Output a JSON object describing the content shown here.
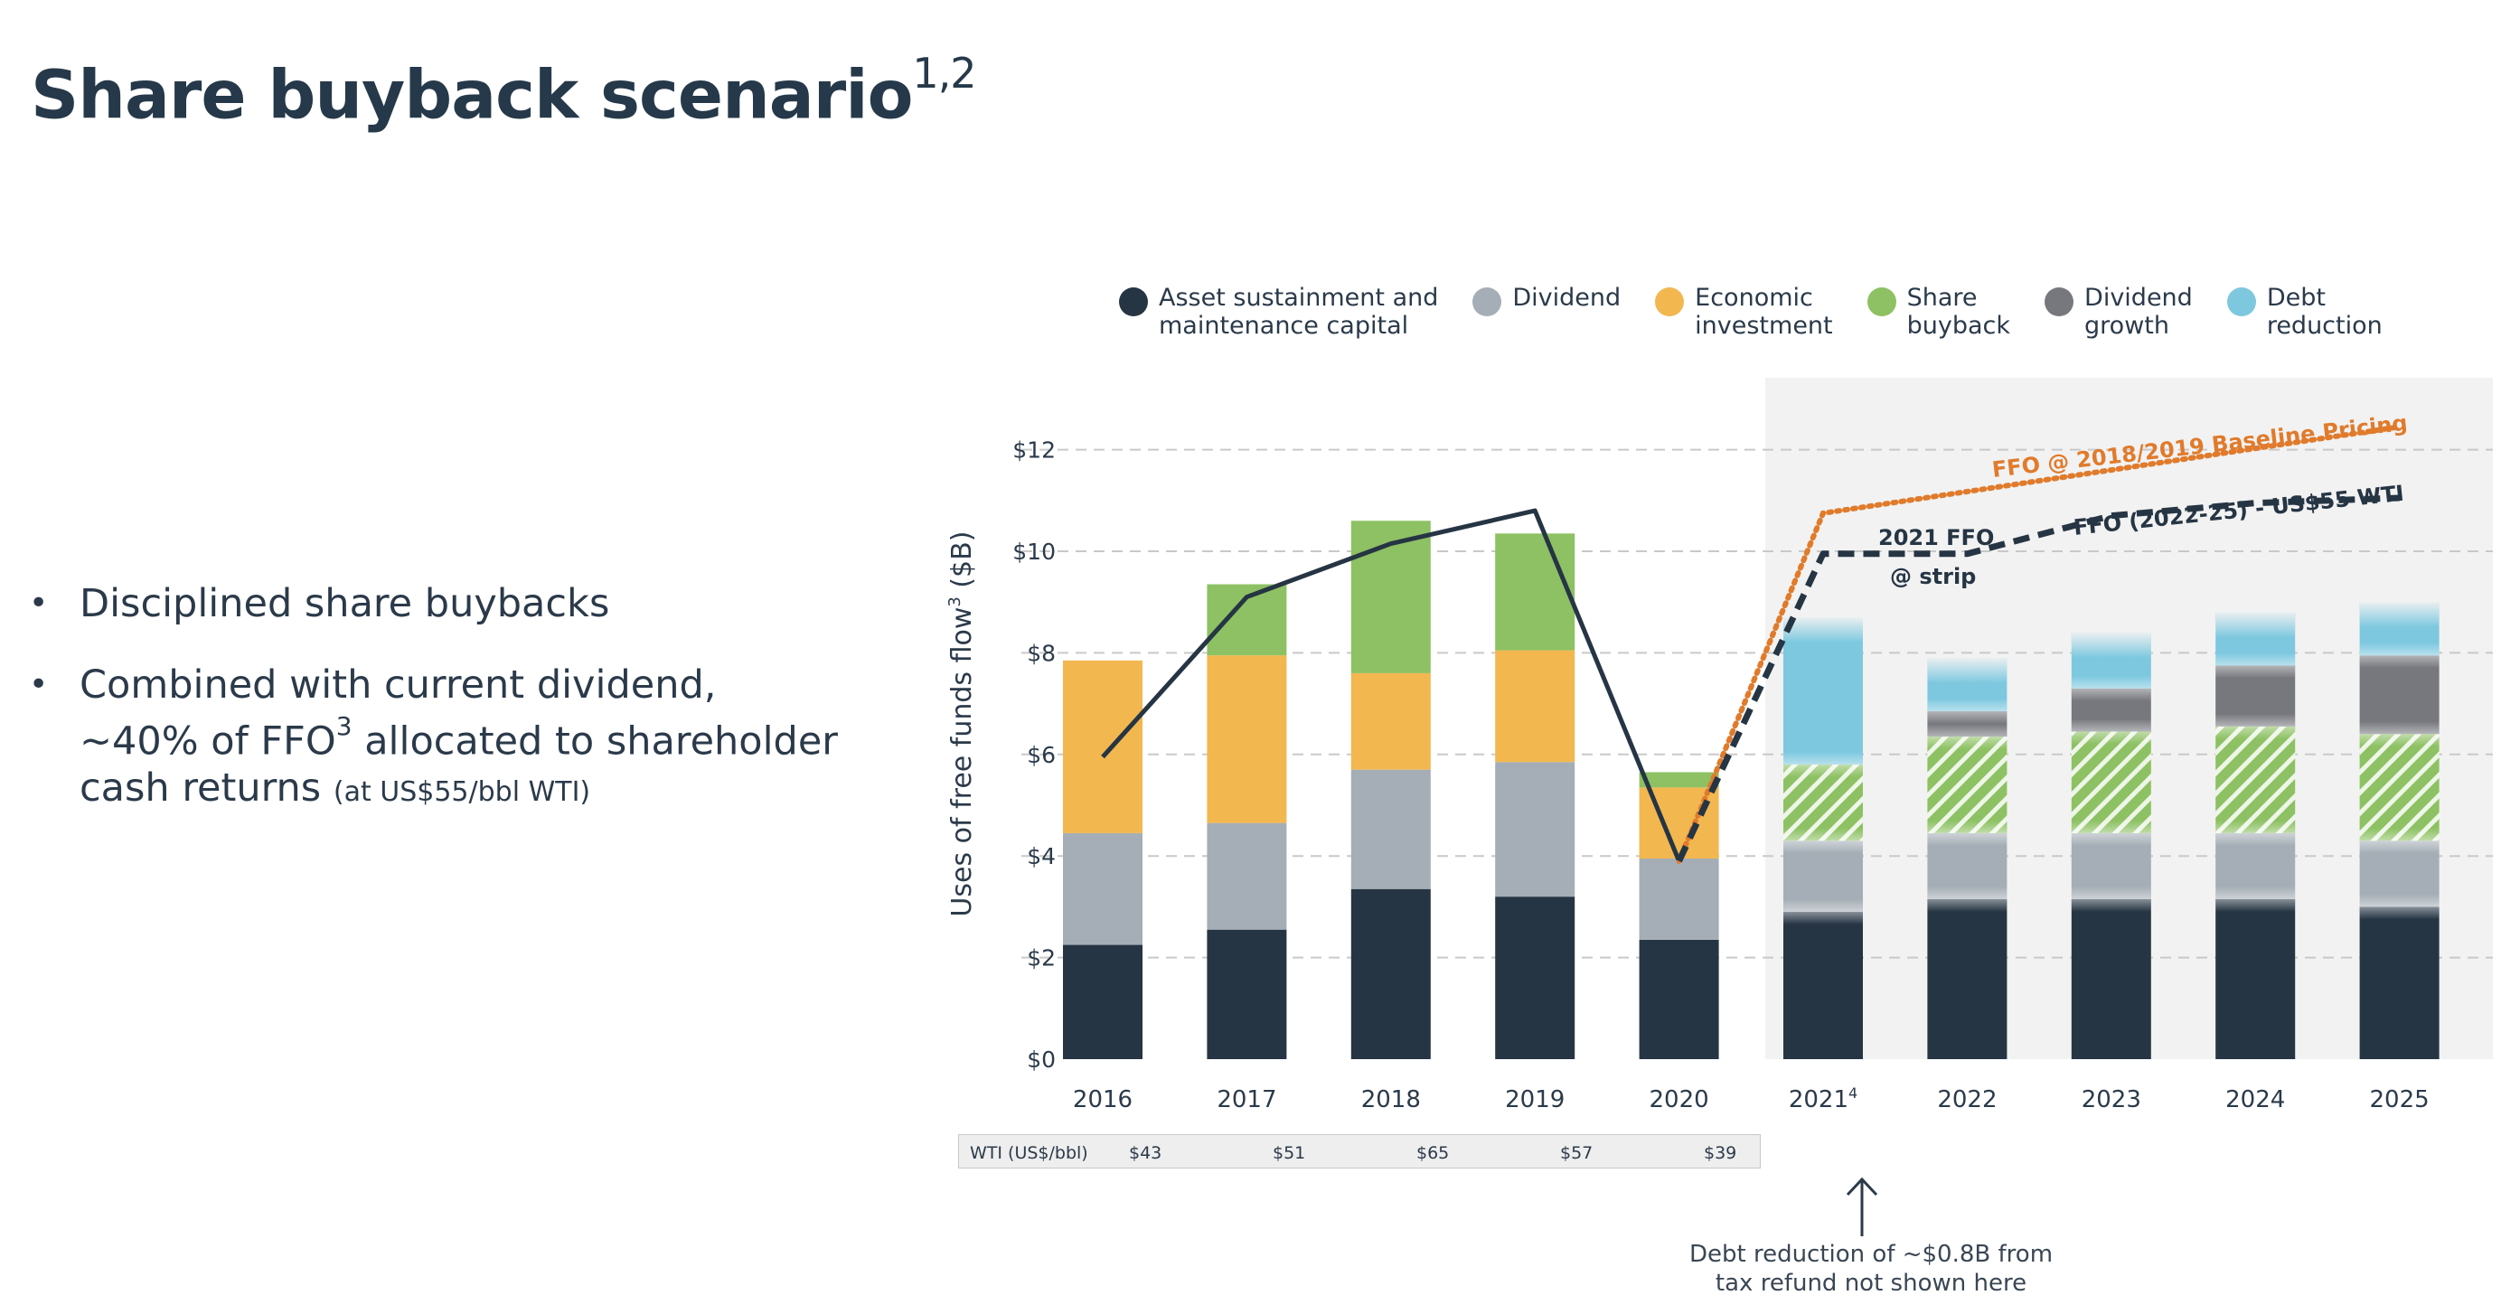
{
  "slide": {
    "title": "Share buyback scenario",
    "title_sup": "1,2",
    "bullets": [
      {
        "text": "Disciplined share buybacks"
      },
      {
        "text_a": "Combined with current dividend,",
        "text_b": "~40% of FFO",
        "sup": "3",
        "text_c": " allocated to shareholder",
        "text_d": "cash returns ",
        "small": "(at US$55/bbl WTI)"
      }
    ],
    "note": "Debt reduction of ~$0.8B from\ntax refund not shown here"
  },
  "legend": [
    {
      "label": "Asset sustainment and\nmaintenance capital",
      "color": "#263544"
    },
    {
      "label": "Dividend",
      "color": "#a5aeb6"
    },
    {
      "label": "Economic\ninvestment",
      "color": "#f2b74f"
    },
    {
      "label": "Share\nbuyback",
      "color": "#8dc163"
    },
    {
      "label": "Dividend\ngrowth",
      "color": "#76787d"
    },
    {
      "label": "Debt\nreduction",
      "color": "#7dc8df"
    }
  ],
  "wti": {
    "label": "WTI (US$/bbl)",
    "values": [
      "$43",
      "$51",
      "$65",
      "$57",
      "$39"
    ]
  },
  "chart_data": {
    "type": "bar",
    "stacked": true,
    "categories": [
      "2016",
      "2017",
      "2018",
      "2019",
      "2020",
      "2021",
      "2022",
      "2023",
      "2024",
      "2025"
    ],
    "category_sup": [
      "",
      "",
      "",
      "",
      "",
      "4",
      "",
      "",
      "",
      ""
    ],
    "ylabel": "Uses of free funds flow",
    "ylabel_sup": "3",
    "ylabel_unit": " ($B)",
    "ylim": [
      0,
      13
    ],
    "yticks": [
      0,
      2,
      4,
      6,
      8,
      10,
      12
    ],
    "ytick_labels": [
      "$0",
      "$2",
      "$4",
      "$6",
      "$8",
      "$10",
      "$12"
    ],
    "grid": true,
    "forecast_start_index": 5,
    "series": [
      {
        "name": "Asset sustainment and maintenance capital",
        "color": "#263544",
        "values": [
          2.25,
          2.55,
          3.35,
          3.2,
          2.35,
          2.9,
          3.15,
          3.15,
          3.15,
          3.0
        ]
      },
      {
        "name": "Dividend",
        "color": "#a5aeb6",
        "values": [
          2.2,
          2.1,
          2.35,
          2.65,
          1.6,
          1.4,
          1.3,
          1.3,
          1.3,
          1.3
        ]
      },
      {
        "name": "Economic investment",
        "color": "#f2b74f",
        "values": [
          3.4,
          3.3,
          1.9,
          2.2,
          1.4,
          0,
          0,
          0,
          0,
          0
        ]
      },
      {
        "name": "Share buyback",
        "color": "#8dc163",
        "values": [
          0,
          1.4,
          3.0,
          2.3,
          0.3,
          1.5,
          1.9,
          2.0,
          2.1,
          2.1
        ]
      },
      {
        "name": "Dividend growth",
        "color": "#76787d",
        "values": [
          0,
          0,
          0,
          0,
          0,
          0,
          0.5,
          0.85,
          1.2,
          1.55
        ]
      },
      {
        "name": "Debt reduction",
        "color": "#7dc8df",
        "values": [
          0,
          0,
          0,
          0,
          0,
          2.9,
          1.05,
          1.1,
          1.05,
          1.05
        ]
      }
    ],
    "line_ffo_actual": {
      "values": [
        5.95,
        9.1,
        10.15,
        10.8,
        3.9
      ],
      "color": "#263544"
    },
    "line_ffo_baseline": {
      "label": "FFO @ 2018/2019 Baseline Pricing",
      "color": "#e07b2c",
      "x_index": [
        4,
        5,
        9
      ],
      "values": [
        3.9,
        10.75,
        12.45
      ]
    },
    "line_ffo_strip": {
      "label": "FFO (2022-25) - US$55 WTI",
      "label_2021_line1": "2021 FFO",
      "label_2021_line2": "@ strip",
      "color": "#263544",
      "x_index": [
        4,
        5,
        6,
        7,
        8,
        9
      ],
      "values": [
        3.9,
        9.95,
        9.95,
        10.7,
        10.95,
        11.05
      ]
    }
  }
}
